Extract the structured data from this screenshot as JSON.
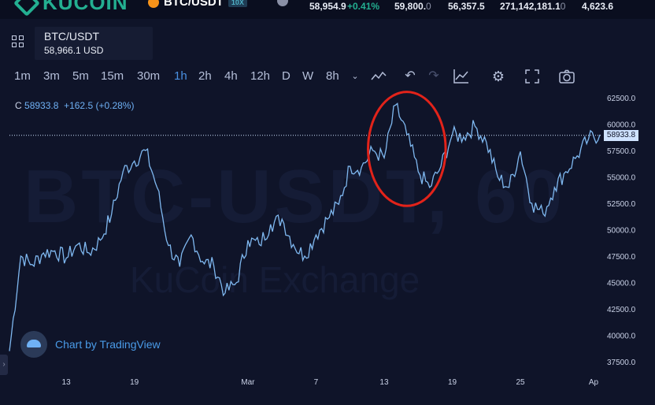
{
  "header": {
    "brand": "KUCOIN",
    "pair": "BTC/USDT",
    "pair_tag": "10X",
    "last_price": "58,954.9",
    "change": "+0.41%",
    "high": "59,800.",
    "high_dim": "0",
    "low": "56,357.5",
    "volume": "271,142,181.1",
    "volume_dim": "0",
    "turnover": "4,623.6"
  },
  "symbol": {
    "name": "BTC/USDT",
    "price": "58,966.1 USD"
  },
  "toolbar": {
    "timeframes": [
      "1m",
      "3m",
      "5m",
      "15m",
      "30m",
      "1h",
      "2h",
      "4h",
      "12h",
      "D",
      "W",
      "8h"
    ],
    "active": "1h"
  },
  "legend": {
    "label": "C",
    "close": "58933.8",
    "change": "+162.5 (+0.28%)"
  },
  "watermark": {
    "line1": "BTC-USDT, 60",
    "line2": "KuCoin Exchange"
  },
  "credit": {
    "text": "Chart by TradingView"
  },
  "colors": {
    "line": "#7fb8f0",
    "annotation": "#e2231a",
    "accent": "#4a90e2",
    "brand": "#23af91"
  },
  "chart_data": {
    "type": "line",
    "ylim": [
      36500,
      63500
    ],
    "y_ticks": [
      "62500.0",
      "60000.0",
      "57500.0",
      "55000.0",
      "52500.0",
      "50000.0",
      "47500.0",
      "45000.0",
      "42500.0",
      "40000.0",
      "37500.0"
    ],
    "x_ticks": [
      "13",
      "19",
      "Mar",
      "7",
      "13",
      "19",
      "25",
      "Ap"
    ],
    "last_value": 58933.8,
    "last_label": "58933.8",
    "x": [
      "Feb 8",
      "Feb 9",
      "Feb 10",
      "Feb 11",
      "Feb 12",
      "Feb 13",
      "Feb 14",
      "Feb 15",
      "Feb 16",
      "Feb 17",
      "Feb 18",
      "Feb 19",
      "Feb 20",
      "Feb 21",
      "Feb 22",
      "Feb 23",
      "Feb 24",
      "Feb 25",
      "Feb 26",
      "Feb 27",
      "Feb 28",
      "Mar 1",
      "Mar 2",
      "Mar 3",
      "Mar 4",
      "Mar 5",
      "Mar 6",
      "Mar 7",
      "Mar 8",
      "Mar 9",
      "Mar 10",
      "Mar 11",
      "Mar 12",
      "Mar 13",
      "Mar 14",
      "Mar 15",
      "Mar 16",
      "Mar 17",
      "Mar 18",
      "Mar 19",
      "Mar 20",
      "Mar 21",
      "Mar 22",
      "Mar 23",
      "Mar 24",
      "Mar 25",
      "Mar 26",
      "Mar 27",
      "Mar 28",
      "Mar 29",
      "Mar 30",
      "Mar 31",
      "Apr 1"
    ],
    "values": [
      38500,
      47500,
      46700,
      47800,
      48000,
      47300,
      48600,
      47800,
      49000,
      51500,
      55500,
      56500,
      57500,
      54000,
      48500,
      46500,
      49500,
      47000,
      46600,
      44000,
      45000,
      49000,
      48600,
      50500,
      51000,
      48600,
      47500,
      49500,
      51000,
      52400,
      56000,
      55900,
      57500,
      56800,
      61800,
      59000,
      55500,
      54000,
      56000,
      59000,
      58800,
      59800,
      58300,
      55000,
      54000,
      57400,
      52500,
      51500,
      54000,
      55500,
      57000,
      58600,
      59000
    ],
    "annotation": {
      "type": "ellipse",
      "x_range": [
        "Mar 12",
        "Mar 18"
      ],
      "y_range": [
        53000,
        62300
      ]
    }
  }
}
